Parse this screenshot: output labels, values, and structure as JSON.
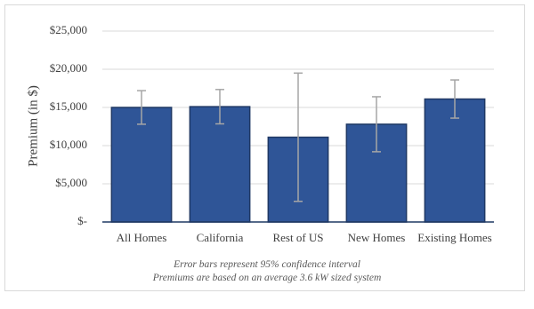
{
  "chart_data": {
    "type": "bar",
    "y_label": "Premium (in $)",
    "notes": [
      "Error bars represent 95% confidence interval",
      "Premiums are based on an average 3.6 kW sized system"
    ],
    "categories": [
      "All Homes",
      "California",
      "Rest of US",
      "New Homes",
      "Existing Homes"
    ],
    "values": [
      15000,
      15100,
      11100,
      12800,
      16100
    ],
    "errors": [
      2200,
      2250,
      8400,
      3600,
      2500
    ],
    "color": "#2f5597",
    "edge_color": "#1f3864",
    "error_color": "#a6a6a6",
    "ylim": [
      0,
      25000
    ],
    "yticks": [
      {
        "value": 0,
        "label": "$-"
      },
      {
        "value": 5000,
        "label": "$5,000"
      },
      {
        "value": 10000,
        "label": "$10,000"
      },
      {
        "value": 15000,
        "label": "$15,000"
      },
      {
        "value": 20000,
        "label": "$20,000"
      },
      {
        "value": 25000,
        "label": "$25,000"
      }
    ],
    "grid": true
  }
}
